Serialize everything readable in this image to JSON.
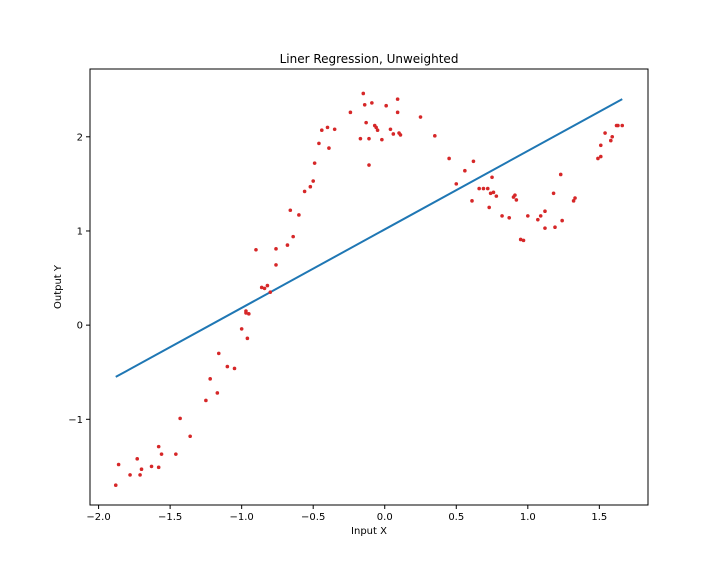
{
  "chart_data": {
    "type": "scatter",
    "title": "Liner Regression, Unweighted",
    "xlabel": "Input X",
    "ylabel": "Output Y",
    "xlim": [
      -2.06,
      1.84
    ],
    "ylim": [
      -1.91,
      2.72
    ],
    "grid": false,
    "xticks": [
      -2.0,
      -1.5,
      -1.0,
      -0.5,
      0.0,
      0.5,
      1.0,
      1.5
    ],
    "xtick_labels": [
      "−2.0",
      "−1.5",
      "−1.0",
      "−0.5",
      "0.0",
      "0.5",
      "1.0",
      "1.5"
    ],
    "yticks": [
      -1,
      0,
      1,
      2
    ],
    "ytick_labels": [
      "−1",
      "0",
      "1",
      "2"
    ],
    "colors": {
      "points": "#d62728",
      "line": "#1f77b4"
    },
    "series": [
      {
        "kind": "scatter",
        "x": [
          -1.88,
          -1.86,
          -1.78,
          -1.73,
          -1.71,
          -1.7,
          -1.63,
          -1.58,
          -1.58,
          -1.56,
          -1.46,
          -1.43,
          -1.36,
          -1.25,
          -1.22,
          -1.17,
          -1.16,
          -1.1,
          -1.05,
          -1.0,
          -0.97,
          -0.97,
          -0.96,
          -0.95,
          -0.9,
          -0.86,
          -0.84,
          -0.82,
          -0.8,
          -0.76,
          -0.76,
          -0.68,
          -0.66,
          -0.64,
          -0.6,
          -0.56,
          -0.52,
          -0.5,
          -0.49,
          -0.46,
          -0.44,
          -0.4,
          -0.39,
          -0.35,
          -0.24,
          -0.17,
          -0.15,
          -0.14,
          -0.13,
          -0.11,
          -0.11,
          -0.09,
          -0.07,
          -0.06,
          -0.05,
          -0.02,
          0.01,
          0.04,
          0.06,
          0.09,
          0.09,
          0.1,
          0.11,
          0.25,
          0.35,
          0.45,
          0.5,
          0.56,
          0.61,
          0.62,
          0.66,
          0.69,
          0.72,
          0.73,
          0.74,
          0.75,
          0.76,
          0.78,
          0.82,
          0.87,
          0.9,
          0.91,
          0.92,
          0.95,
          0.97,
          1.0,
          1.07,
          1.09,
          1.12,
          1.12,
          1.18,
          1.19,
          1.23,
          1.24,
          1.32,
          1.33,
          1.49,
          1.51,
          1.51,
          1.54,
          1.58,
          1.59,
          1.62,
          1.63,
          1.66
        ],
        "y": [
          -1.7,
          -1.48,
          -1.59,
          -1.42,
          -1.59,
          -1.53,
          -1.5,
          -1.29,
          -1.51,
          -1.37,
          -1.37,
          -0.99,
          -1.18,
          -0.8,
          -0.57,
          -0.72,
          -0.3,
          -0.44,
          -0.46,
          -0.04,
          0.13,
          0.15,
          -0.14,
          0.12,
          0.8,
          0.4,
          0.39,
          0.42,
          0.35,
          0.64,
          0.81,
          0.85,
          1.22,
          0.94,
          1.17,
          1.42,
          1.47,
          1.53,
          1.72,
          1.93,
          2.07,
          2.1,
          1.88,
          2.08,
          2.26,
          1.98,
          2.46,
          2.34,
          2.15,
          1.7,
          1.98,
          2.36,
          2.12,
          2.1,
          2.07,
          1.97,
          2.33,
          2.08,
          2.03,
          2.4,
          2.26,
          2.04,
          2.02,
          2.21,
          2.01,
          1.77,
          1.5,
          1.64,
          1.32,
          1.74,
          1.45,
          1.45,
          1.45,
          1.25,
          1.4,
          1.57,
          1.41,
          1.37,
          1.16,
          1.14,
          1.36,
          1.38,
          1.33,
          0.91,
          0.9,
          1.16,
          1.12,
          1.16,
          1.03,
          1.21,
          1.4,
          1.04,
          1.6,
          1.11,
          1.32,
          1.35,
          1.77,
          1.91,
          1.79,
          2.04,
          1.96,
          2.0,
          2.12,
          2.12,
          2.12
        ]
      },
      {
        "kind": "line",
        "x": [
          -1.88,
          1.66
        ],
        "y": [
          -0.55,
          2.4
        ]
      }
    ]
  }
}
